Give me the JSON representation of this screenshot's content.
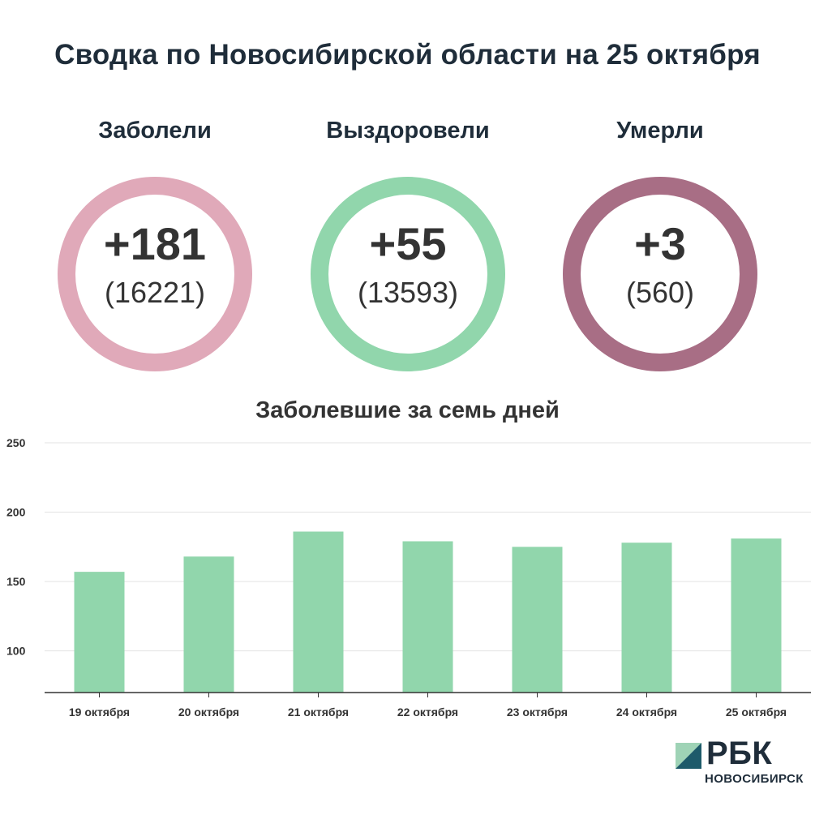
{
  "title": "Сводка по Новосибирской области на 25 октября",
  "stats": [
    {
      "label": "Заболели",
      "delta": "+181",
      "total": "(16221)",
      "color": "#e0a9b9"
    },
    {
      "label": "Выздоровели",
      "delta": "+55",
      "total": "(13593)",
      "color": "#91d6ac"
    },
    {
      "label": "Умерли",
      "delta": "+3",
      "total": "(560)",
      "color": "#a86e85"
    }
  ],
  "chart_data": {
    "type": "bar",
    "title": "Заболевшие за семь дней",
    "categories": [
      "19 октября",
      "20 октября",
      "21 октября",
      "22 октября",
      "23 октября",
      "24 октября",
      "25 октября"
    ],
    "values": [
      157,
      168,
      186,
      179,
      175,
      178,
      181
    ],
    "ylim": [
      70,
      250
    ],
    "yticks": [
      100,
      150,
      200,
      250
    ],
    "grid": true,
    "bar_color": "#91d6ac"
  },
  "logo": {
    "name": "РБК",
    "city": "НОВОСИБИРСК"
  }
}
